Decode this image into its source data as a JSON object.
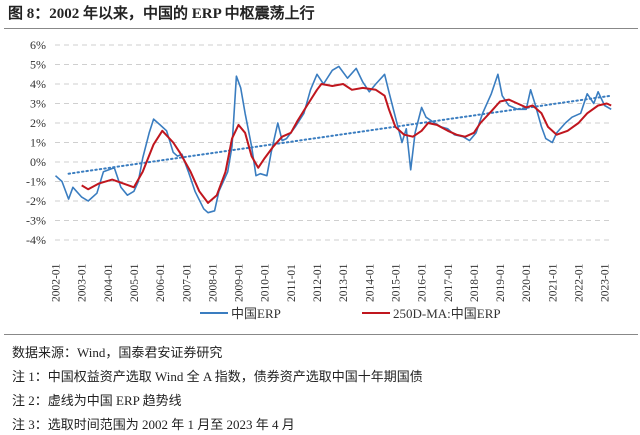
{
  "title": "图 8：2002 年以来，中国的 ERP 中枢震荡上行",
  "chart_data": {
    "type": "line",
    "title": "",
    "xlabel": "",
    "ylabel": "",
    "ylim": [
      -4,
      6
    ],
    "yticks": [
      "6%",
      "5%",
      "4%",
      "3%",
      "2%",
      "1%",
      "0%",
      "-1%",
      "-2%",
      "-3%",
      "-4%"
    ],
    "ytick_values": [
      6,
      5,
      4,
      3,
      2,
      1,
      0,
      -1,
      -2,
      -3,
      -4
    ],
    "xticks": [
      "2002-01",
      "2003-01",
      "2004-01",
      "2005-01",
      "2006-01",
      "2007-01",
      "2008-01",
      "2009-01",
      "2010-01",
      "2011-01",
      "2012-01",
      "2013-01",
      "2014-01",
      "2015-01",
      "2016-01",
      "2017-01",
      "2018-01",
      "2019-01",
      "2020-01",
      "2021-01",
      "2022-01",
      "2023-01"
    ],
    "xlim": [
      "2002-01",
      "2023-04"
    ],
    "grid": "horizontal dashed",
    "legend": "bottom",
    "series": [
      {
        "name": "中国ERP",
        "color": "#3A7DC0",
        "style": "solid",
        "points": [
          [
            "2002-01",
            -0.7
          ],
          [
            "2002-04",
            -1.0
          ],
          [
            "2002-07",
            -1.9
          ],
          [
            "2002-09",
            -1.3
          ],
          [
            "2003-01",
            -1.8
          ],
          [
            "2003-04",
            -2.0
          ],
          [
            "2003-08",
            -1.6
          ],
          [
            "2003-11",
            -0.5
          ],
          [
            "2004-04",
            -0.3
          ],
          [
            "2004-07",
            -1.3
          ],
          [
            "2004-10",
            -1.7
          ],
          [
            "2005-01",
            -1.5
          ],
          [
            "2005-03",
            -1.0
          ],
          [
            "2005-05",
            0.2
          ],
          [
            "2005-08",
            1.5
          ],
          [
            "2005-10",
            2.2
          ],
          [
            "2006-01",
            1.9
          ],
          [
            "2006-04",
            1.6
          ],
          [
            "2006-07",
            0.5
          ],
          [
            "2006-09",
            0.3
          ],
          [
            "2006-11",
            0.4
          ],
          [
            "2007-02",
            -0.5
          ],
          [
            "2007-05",
            -1.5
          ],
          [
            "2007-09",
            -2.4
          ],
          [
            "2007-11",
            -2.6
          ],
          [
            "2008-02",
            -2.5
          ],
          [
            "2008-04",
            -1.5
          ],
          [
            "2008-08",
            -0.5
          ],
          [
            "2008-10",
            0.8
          ],
          [
            "2008-12",
            4.4
          ],
          [
            "2009-02",
            3.8
          ],
          [
            "2009-04",
            2.5
          ],
          [
            "2009-07",
            0.8
          ],
          [
            "2009-09",
            -0.7
          ],
          [
            "2009-11",
            -0.6
          ],
          [
            "2010-02",
            -0.7
          ],
          [
            "2010-04",
            0.5
          ],
          [
            "2010-07",
            2.0
          ],
          [
            "2010-09",
            1.1
          ],
          [
            "2010-11",
            1.2
          ],
          [
            "2011-03",
            1.8
          ],
          [
            "2011-07",
            2.5
          ],
          [
            "2011-10",
            3.7
          ],
          [
            "2012-01",
            4.5
          ],
          [
            "2012-04",
            4.0
          ],
          [
            "2012-08",
            4.7
          ],
          [
            "2012-11",
            4.9
          ],
          [
            "2013-03",
            4.3
          ],
          [
            "2013-07",
            4.8
          ],
          [
            "2013-10",
            4.1
          ],
          [
            "2014-01",
            3.6
          ],
          [
            "2014-04",
            4.0
          ],
          [
            "2014-08",
            4.5
          ],
          [
            "2014-10",
            3.6
          ],
          [
            "2015-01",
            2.3
          ],
          [
            "2015-04",
            1.0
          ],
          [
            "2015-06",
            1.7
          ],
          [
            "2015-08",
            -0.4
          ],
          [
            "2015-10",
            1.5
          ],
          [
            "2016-01",
            2.8
          ],
          [
            "2016-03",
            2.3
          ],
          [
            "2016-07",
            2.0
          ],
          [
            "2016-10",
            1.8
          ],
          [
            "2017-01",
            1.7
          ],
          [
            "2017-04",
            1.4
          ],
          [
            "2017-08",
            1.3
          ],
          [
            "2017-11",
            1.1
          ],
          [
            "2018-02",
            1.5
          ],
          [
            "2018-05",
            2.5
          ],
          [
            "2018-09",
            3.5
          ],
          [
            "2018-12",
            4.5
          ],
          [
            "2019-02",
            3.4
          ],
          [
            "2019-05",
            2.9
          ],
          [
            "2019-09",
            2.7
          ],
          [
            "2020-01",
            2.7
          ],
          [
            "2020-03",
            3.7
          ],
          [
            "2020-05",
            3.0
          ],
          [
            "2020-08",
            1.8
          ],
          [
            "2020-10",
            1.2
          ],
          [
            "2021-01",
            1.0
          ],
          [
            "2021-03",
            1.5
          ],
          [
            "2021-07",
            2.0
          ],
          [
            "2021-10",
            2.3
          ],
          [
            "2022-02",
            2.5
          ],
          [
            "2022-05",
            3.5
          ],
          [
            "2022-08",
            3.0
          ],
          [
            "2022-10",
            3.6
          ],
          [
            "2023-01",
            2.9
          ],
          [
            "2023-04",
            2.7
          ]
        ]
      },
      {
        "name": "250D-MA:中国ERP",
        "color": "#C0161E",
        "style": "solid",
        "points": [
          [
            "2003-01",
            -1.2
          ],
          [
            "2003-04",
            -1.4
          ],
          [
            "2003-09",
            -1.1
          ],
          [
            "2004-03",
            -0.9
          ],
          [
            "2004-08",
            -1.1
          ],
          [
            "2005-01",
            -1.3
          ],
          [
            "2005-05",
            -0.5
          ],
          [
            "2005-10",
            0.9
          ],
          [
            "2006-02",
            1.6
          ],
          [
            "2006-07",
            1.0
          ],
          [
            "2006-10",
            0.5
          ],
          [
            "2007-03",
            -0.5
          ],
          [
            "2007-07",
            -1.5
          ],
          [
            "2007-11",
            -2.1
          ],
          [
            "2008-03",
            -1.7
          ],
          [
            "2008-07",
            -0.5
          ],
          [
            "2008-10",
            1.2
          ],
          [
            "2009-01",
            1.9
          ],
          [
            "2009-04",
            1.5
          ],
          [
            "2009-07",
            0.3
          ],
          [
            "2009-10",
            -0.3
          ],
          [
            "2010-01",
            0.2
          ],
          [
            "2010-05",
            0.8
          ],
          [
            "2010-09",
            1.3
          ],
          [
            "2011-01",
            1.5
          ],
          [
            "2011-04",
            2.1
          ],
          [
            "2011-09",
            3.0
          ],
          [
            "2012-01",
            3.7
          ],
          [
            "2012-03",
            4.0
          ],
          [
            "2012-08",
            3.9
          ],
          [
            "2013-01",
            4.0
          ],
          [
            "2013-05",
            3.7
          ],
          [
            "2013-10",
            3.8
          ],
          [
            "2014-04",
            3.7
          ],
          [
            "2014-08",
            3.4
          ],
          [
            "2014-10",
            2.7
          ],
          [
            "2015-01",
            1.8
          ],
          [
            "2015-05",
            1.4
          ],
          [
            "2015-09",
            1.3
          ],
          [
            "2016-01",
            1.6
          ],
          [
            "2016-04",
            2.0
          ],
          [
            "2016-08",
            1.9
          ],
          [
            "2017-01",
            1.6
          ],
          [
            "2017-05",
            1.4
          ],
          [
            "2017-09",
            1.3
          ],
          [
            "2018-01",
            1.5
          ],
          [
            "2018-04",
            2.0
          ],
          [
            "2018-09",
            2.6
          ],
          [
            "2019-01",
            3.1
          ],
          [
            "2019-05",
            3.2
          ],
          [
            "2019-09",
            3.0
          ],
          [
            "2020-01",
            2.8
          ],
          [
            "2020-04",
            2.9
          ],
          [
            "2020-08",
            2.5
          ],
          [
            "2020-11",
            1.8
          ],
          [
            "2021-03",
            1.4
          ],
          [
            "2021-08",
            1.6
          ],
          [
            "2022-01",
            2.0
          ],
          [
            "2022-05",
            2.5
          ],
          [
            "2022-10",
            2.9
          ],
          [
            "2023-02",
            3.0
          ],
          [
            "2023-04",
            2.9
          ]
        ]
      }
    ],
    "trendline": {
      "color": "#3A7DC0",
      "style": "dotted",
      "points": [
        [
          "2002-07",
          -0.6
        ],
        [
          "2023-04",
          3.4
        ]
      ]
    }
  },
  "notes": [
    "数据来源：Wind，国泰君安证券研究",
    "注 1：中国权益资产选取 Wind 全 A 指数，债券资产选取中国十年期国债",
    "注 2：虚线为中国 ERP 趋势线",
    "注 3：选取时间范围为 2002 年 1 月至 2023 年 4 月"
  ]
}
